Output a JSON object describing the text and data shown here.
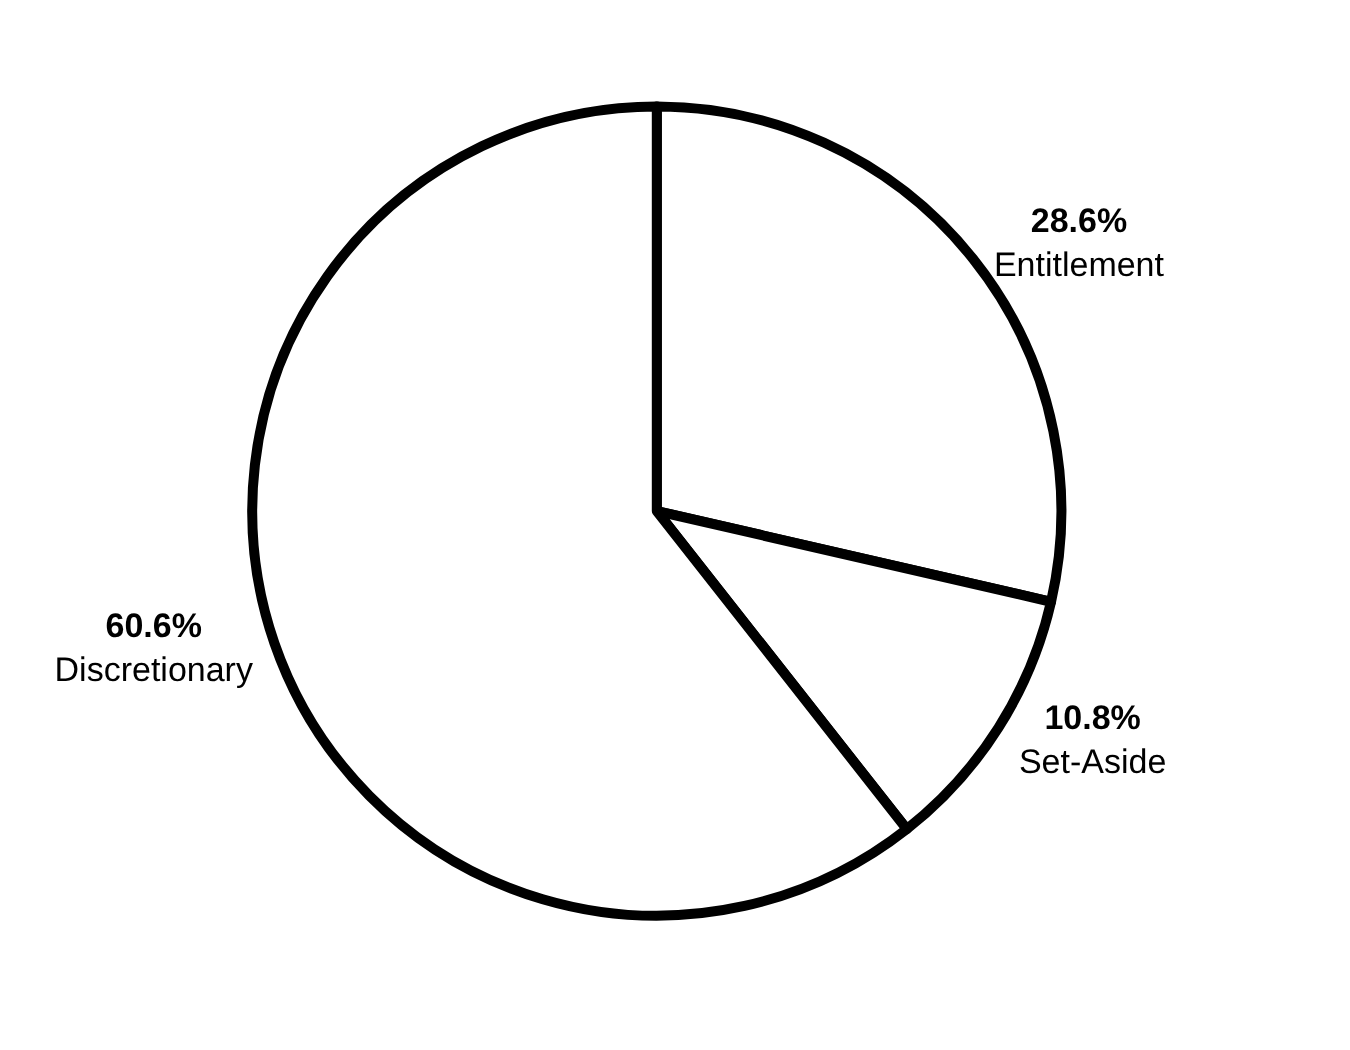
{
  "chart_data": {
    "type": "pie",
    "categories": [
      "Entitlement",
      "Set-Aside",
      "Discretionary"
    ],
    "values": [
      28.6,
      10.8,
      60.6
    ],
    "value_labels": [
      "28.6%",
      "10.8%",
      "60.6%"
    ],
    "colors": [
      "#ffffff",
      "#ffffff",
      "#ffffff"
    ],
    "legend": false
  }
}
